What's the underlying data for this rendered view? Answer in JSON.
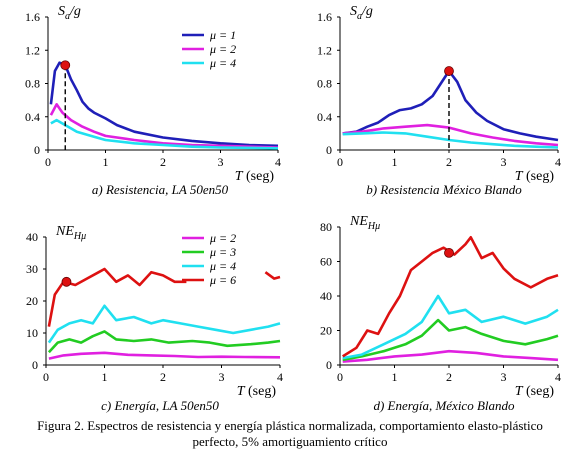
{
  "caption": {
    "line1": "Figura 2.  Espectros de  resistencia y energía plástica normalizada, comportamiento elasto-plástico",
    "line2": "perfecto, 5% amortiguamiento crítico"
  },
  "chart_data": [
    {
      "type": "line",
      "title": "a) Resistencia, LA 50en50",
      "ylabel": "Sa/g",
      "xlabel": "T (seg)",
      "xlim": [
        0,
        4
      ],
      "ylim": [
        0,
        1.6
      ],
      "xticks": [
        "0",
        "1",
        "2",
        "3",
        "4"
      ],
      "yticks": [
        "0",
        "0.4",
        "0.8",
        "1.2",
        "1.6"
      ],
      "legend": "top-right",
      "series": [
        {
          "name": "μ = 1",
          "color": "#1f1fb8",
          "x": [
            0.05,
            0.12,
            0.2,
            0.3,
            0.4,
            0.5,
            0.6,
            0.7,
            0.8,
            1.0,
            1.2,
            1.5,
            2.0,
            2.5,
            3.0,
            3.5,
            4.0
          ],
          "y": [
            0.55,
            0.95,
            1.05,
            1.02,
            0.85,
            0.72,
            0.58,
            0.5,
            0.45,
            0.38,
            0.3,
            0.22,
            0.15,
            0.11,
            0.08,
            0.06,
            0.05
          ]
        },
        {
          "name": "μ = 2",
          "color": "#e020e0",
          "x": [
            0.05,
            0.15,
            0.25,
            0.4,
            0.6,
            0.8,
            1.0,
            1.5,
            2.0,
            2.5,
            3.0,
            3.5,
            4.0
          ],
          "y": [
            0.42,
            0.55,
            0.45,
            0.36,
            0.28,
            0.22,
            0.17,
            0.12,
            0.08,
            0.06,
            0.05,
            0.04,
            0.03
          ]
        },
        {
          "name": "μ = 4",
          "color": "#20e0f0",
          "x": [
            0.05,
            0.15,
            0.3,
            0.5,
            0.8,
            1.0,
            1.5,
            2.0,
            2.5,
            3.0,
            4.0
          ],
          "y": [
            0.32,
            0.36,
            0.3,
            0.22,
            0.16,
            0.12,
            0.08,
            0.06,
            0.04,
            0.03,
            0.02
          ]
        }
      ],
      "marker": {
        "x": 0.3,
        "y": 1.02,
        "color": "#dd1111"
      }
    },
    {
      "type": "line",
      "title": "b) Resistencia México Blando",
      "ylabel": "Sa/g",
      "xlabel": "T (seg)",
      "xlim": [
        0,
        4
      ],
      "ylim": [
        0,
        1.6
      ],
      "xticks": [
        "0",
        "1",
        "2",
        "3",
        "4"
      ],
      "yticks": [
        "0",
        "0.4",
        "0.8",
        "1.2",
        "1.6"
      ],
      "series": [
        {
          "name": "μ = 1",
          "color": "#1f1fb8",
          "x": [
            0.05,
            0.3,
            0.5,
            0.7,
            0.9,
            1.1,
            1.3,
            1.5,
            1.7,
            1.85,
            2.0,
            2.15,
            2.3,
            2.5,
            2.7,
            3.0,
            3.3,
            3.6,
            4.0
          ],
          "y": [
            0.2,
            0.22,
            0.28,
            0.33,
            0.42,
            0.48,
            0.5,
            0.55,
            0.65,
            0.8,
            0.95,
            0.82,
            0.6,
            0.45,
            0.35,
            0.25,
            0.2,
            0.16,
            0.12
          ]
        },
        {
          "name": "μ = 2",
          "color": "#e020e0",
          "x": [
            0.05,
            0.4,
            0.8,
            1.2,
            1.6,
            2.0,
            2.4,
            2.8,
            3.2,
            3.6,
            4.0
          ],
          "y": [
            0.2,
            0.22,
            0.26,
            0.28,
            0.3,
            0.27,
            0.2,
            0.15,
            0.11,
            0.08,
            0.06
          ]
        },
        {
          "name": "μ = 4",
          "color": "#20e0f0",
          "x": [
            0.05,
            0.4,
            0.8,
            1.2,
            1.6,
            2.0,
            2.4,
            2.8,
            3.2,
            3.6,
            4.0
          ],
          "y": [
            0.19,
            0.2,
            0.21,
            0.2,
            0.16,
            0.12,
            0.09,
            0.07,
            0.05,
            0.04,
            0.03
          ]
        }
      ],
      "marker": {
        "x": 2.0,
        "y": 0.95,
        "color": "#dd1111"
      }
    },
    {
      "type": "line",
      "title": "c) Energía, LA 50en50",
      "ylabel": "NEHμ",
      "xlabel": "T (seg)",
      "xlim": [
        0,
        4
      ],
      "ylim": [
        0,
        40
      ],
      "xticks": [
        "0",
        "1",
        "2",
        "3",
        "4"
      ],
      "yticks": [
        "0",
        "10",
        "20",
        "30",
        "40"
      ],
      "legend": "top-right",
      "series": [
        {
          "name": "μ = 2",
          "color": "#e020e0",
          "x": [
            0.05,
            0.3,
            0.6,
            1.0,
            1.4,
            1.8,
            2.2,
            2.6,
            3.0,
            3.4,
            4.0
          ],
          "y": [
            2.0,
            3.0,
            3.5,
            3.8,
            3.2,
            3.0,
            2.8,
            2.5,
            2.6,
            2.5,
            2.4
          ]
        },
        {
          "name": "μ = 3",
          "color": "#22cc22",
          "x": [
            0.05,
            0.2,
            0.4,
            0.6,
            0.8,
            1.0,
            1.2,
            1.5,
            1.8,
            2.1,
            2.5,
            2.8,
            3.1,
            3.5,
            3.8,
            4.0
          ],
          "y": [
            4,
            7,
            8,
            7,
            9,
            10.5,
            8,
            7.5,
            8,
            7,
            7.5,
            7,
            6,
            6.5,
            7,
            7.5
          ]
        },
        {
          "name": "μ = 4",
          "color": "#20e0f0",
          "x": [
            0.05,
            0.2,
            0.4,
            0.6,
            0.8,
            1.0,
            1.2,
            1.5,
            1.8,
            2.0,
            2.3,
            2.6,
            2.9,
            3.2,
            3.5,
            3.8,
            4.0
          ],
          "y": [
            7,
            11,
            13,
            14,
            13,
            18.5,
            14,
            15,
            13,
            14,
            13,
            12,
            11,
            10,
            11,
            12,
            13
          ]
        },
        {
          "name": "μ = 6",
          "color": "#dd1111",
          "x": [
            0.05,
            0.15,
            0.3,
            0.5,
            0.7,
            0.9,
            1.0,
            1.2,
            1.4,
            1.6,
            1.8,
            2.0,
            2.2,
            2.4
          ],
          "y": [
            12,
            22,
            26,
            25,
            27,
            29,
            30,
            26,
            28,
            25,
            29,
            28,
            26,
            26
          ]
        },
        {
          "name": "μ = 6 (tail)",
          "color": "#dd1111",
          "hide_legend": true,
          "x": [
            3.75,
            3.9,
            4.0
          ],
          "y": [
            29,
            27,
            27.5
          ]
        }
      ],
      "marker": {
        "x": 0.35,
        "y": 26,
        "color": "#dd1111"
      }
    },
    {
      "type": "line",
      "title": "d) Energía, México Blando",
      "ylabel": "NEHμ",
      "xlabel": "T (seg)",
      "xlim": [
        0,
        4
      ],
      "ylim": [
        0,
        80
      ],
      "xticks": [
        "0",
        "1",
        "2",
        "3",
        "4"
      ],
      "yticks": [
        "0",
        "20",
        "40",
        "60",
        "80"
      ],
      "series": [
        {
          "name": "μ = 2",
          "color": "#e020e0",
          "x": [
            0.05,
            0.5,
            1.0,
            1.5,
            2.0,
            2.5,
            3.0,
            3.5,
            4.0
          ],
          "y": [
            2,
            3,
            5,
            6,
            8,
            7,
            5,
            4,
            3
          ]
        },
        {
          "name": "μ = 3",
          "color": "#22cc22",
          "x": [
            0.05,
            0.4,
            0.8,
            1.2,
            1.5,
            1.8,
            2.0,
            2.3,
            2.6,
            3.0,
            3.4,
            3.8,
            4.0
          ],
          "y": [
            3,
            5,
            8,
            12,
            17,
            26,
            20,
            22,
            18,
            14,
            12,
            15,
            17
          ]
        },
        {
          "name": "μ = 4",
          "color": "#20e0f0",
          "x": [
            0.05,
            0.4,
            0.8,
            1.2,
            1.5,
            1.8,
            2.0,
            2.3,
            2.6,
            3.0,
            3.4,
            3.8,
            4.0
          ],
          "y": [
            4,
            6,
            12,
            18,
            25,
            40,
            30,
            32,
            25,
            28,
            24,
            28,
            32
          ]
        },
        {
          "name": "μ = 6",
          "color": "#dd1111",
          "x": [
            0.05,
            0.3,
            0.5,
            0.7,
            0.9,
            1.1,
            1.3,
            1.5,
            1.7,
            1.9,
            2.1,
            2.3,
            2.4,
            2.6,
            2.8,
            3.0,
            3.2,
            3.5,
            3.8,
            4.0
          ],
          "y": [
            5,
            10,
            20,
            18,
            30,
            40,
            55,
            60,
            65,
            68,
            64,
            70,
            74,
            62,
            65,
            56,
            50,
            45,
            50,
            52
          ]
        }
      ],
      "marker": {
        "x": 2.0,
        "y": 65,
        "color": "#dd1111"
      }
    }
  ]
}
